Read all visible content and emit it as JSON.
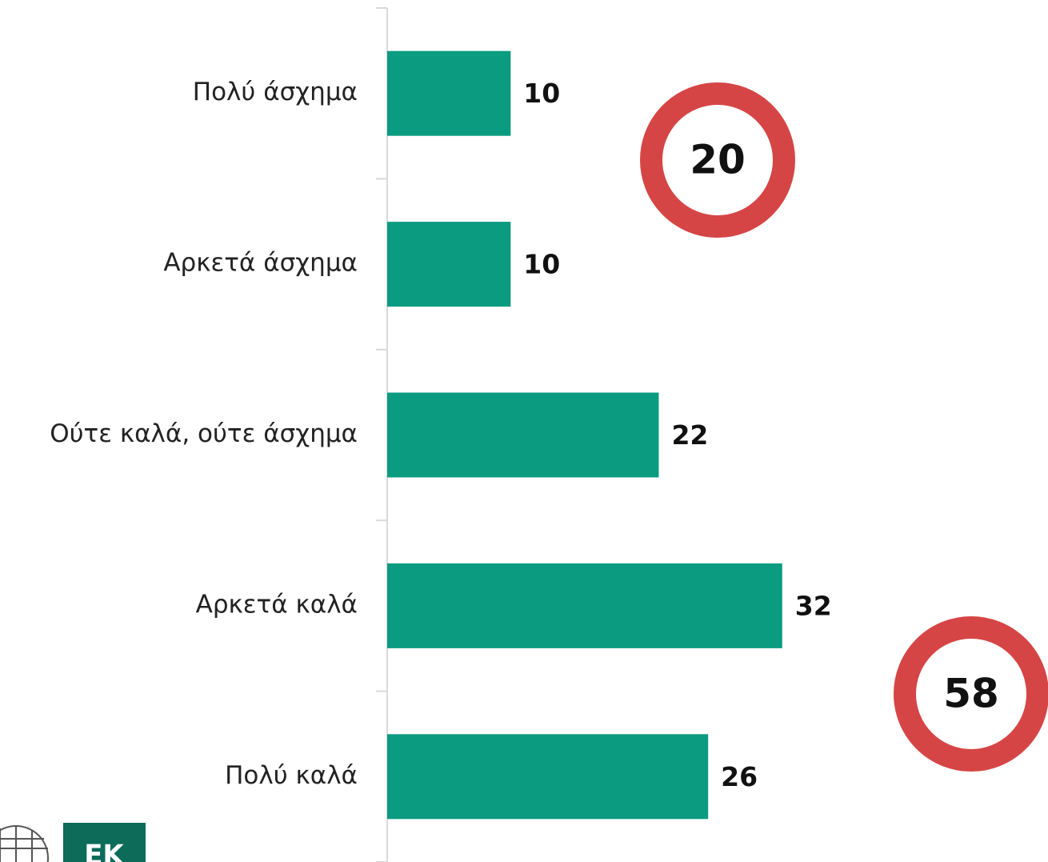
{
  "chart_data": {
    "type": "barh",
    "categories": [
      "Πολύ άσχημα",
      "Αρκετά άσχημα",
      "Ούτε καλά, ούτε άσχημα",
      "Αρκετά καλά",
      "Πολύ καλά"
    ],
    "values": [
      10,
      10,
      22,
      32,
      26
    ],
    "color": "#0a9b80",
    "annotations": [
      20,
      58
    ],
    "annotation_color": "#d64545",
    "logo": "EK"
  }
}
